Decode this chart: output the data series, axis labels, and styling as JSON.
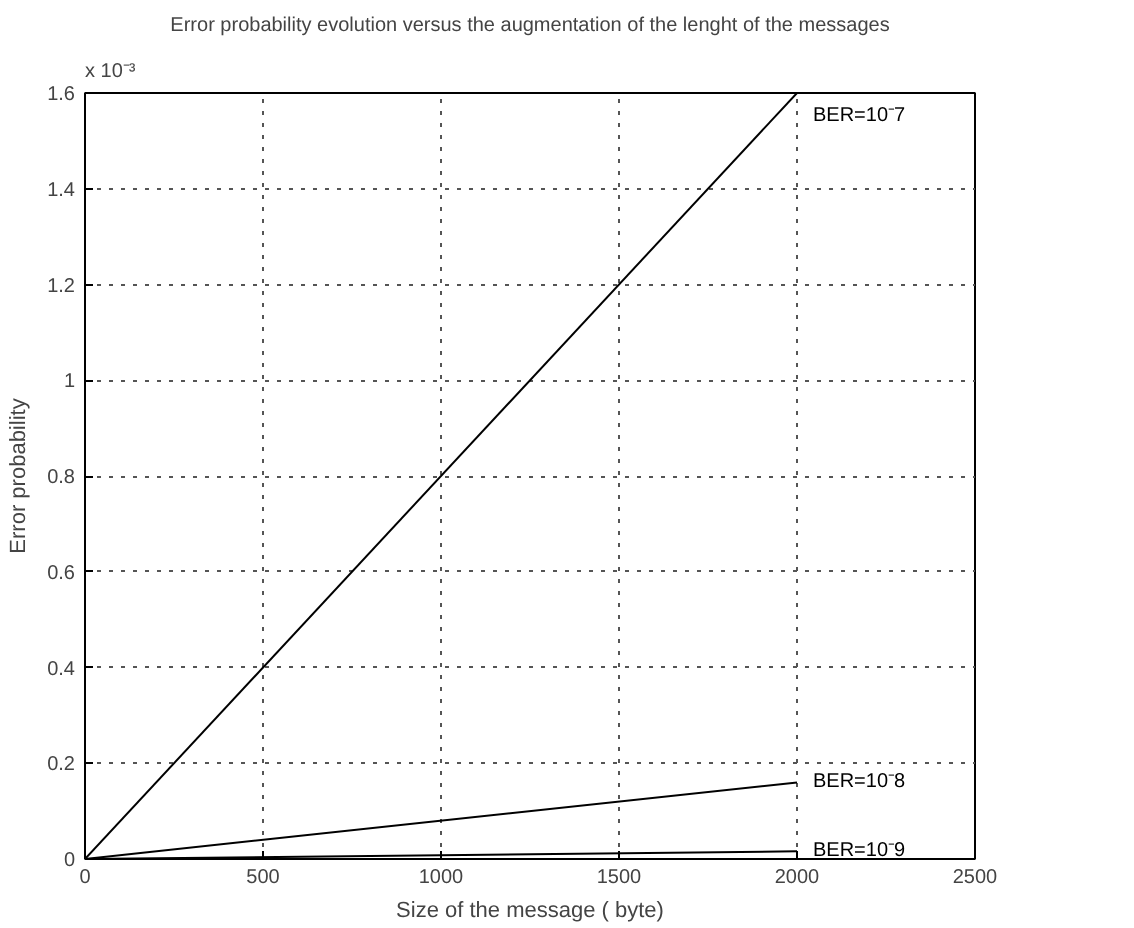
{
  "chart_data": {
    "type": "line",
    "title": "Error probability evolution versus the augmentation of the lenght of the messages",
    "xlabel": "Size of the message ( byte)",
    "ylabel": "Error probability",
    "annotations": [
      "x 10⁻³"
    ],
    "x": [
      0,
      2000
    ],
    "series": [
      {
        "name": "BER=10⁻7",
        "color": "#000000",
        "values": [
          0,
          1.6
        ]
      },
      {
        "name": "BER=10⁻8",
        "color": "#000000",
        "values": [
          0,
          0.16
        ]
      },
      {
        "name": "BER=10⁻9",
        "color": "#000000",
        "values": [
          0,
          0.016
        ]
      }
    ],
    "xlim": [
      0,
      2500
    ],
    "xticks": [
      0,
      500,
      1000,
      1500,
      2000,
      2500
    ],
    "ylim": [
      0,
      1.6
    ],
    "yticks": [
      0,
      0.2,
      0.4,
      0.6,
      0.8,
      1,
      1.2,
      1.4,
      1.6
    ],
    "grid": true,
    "line_style": "solid"
  }
}
